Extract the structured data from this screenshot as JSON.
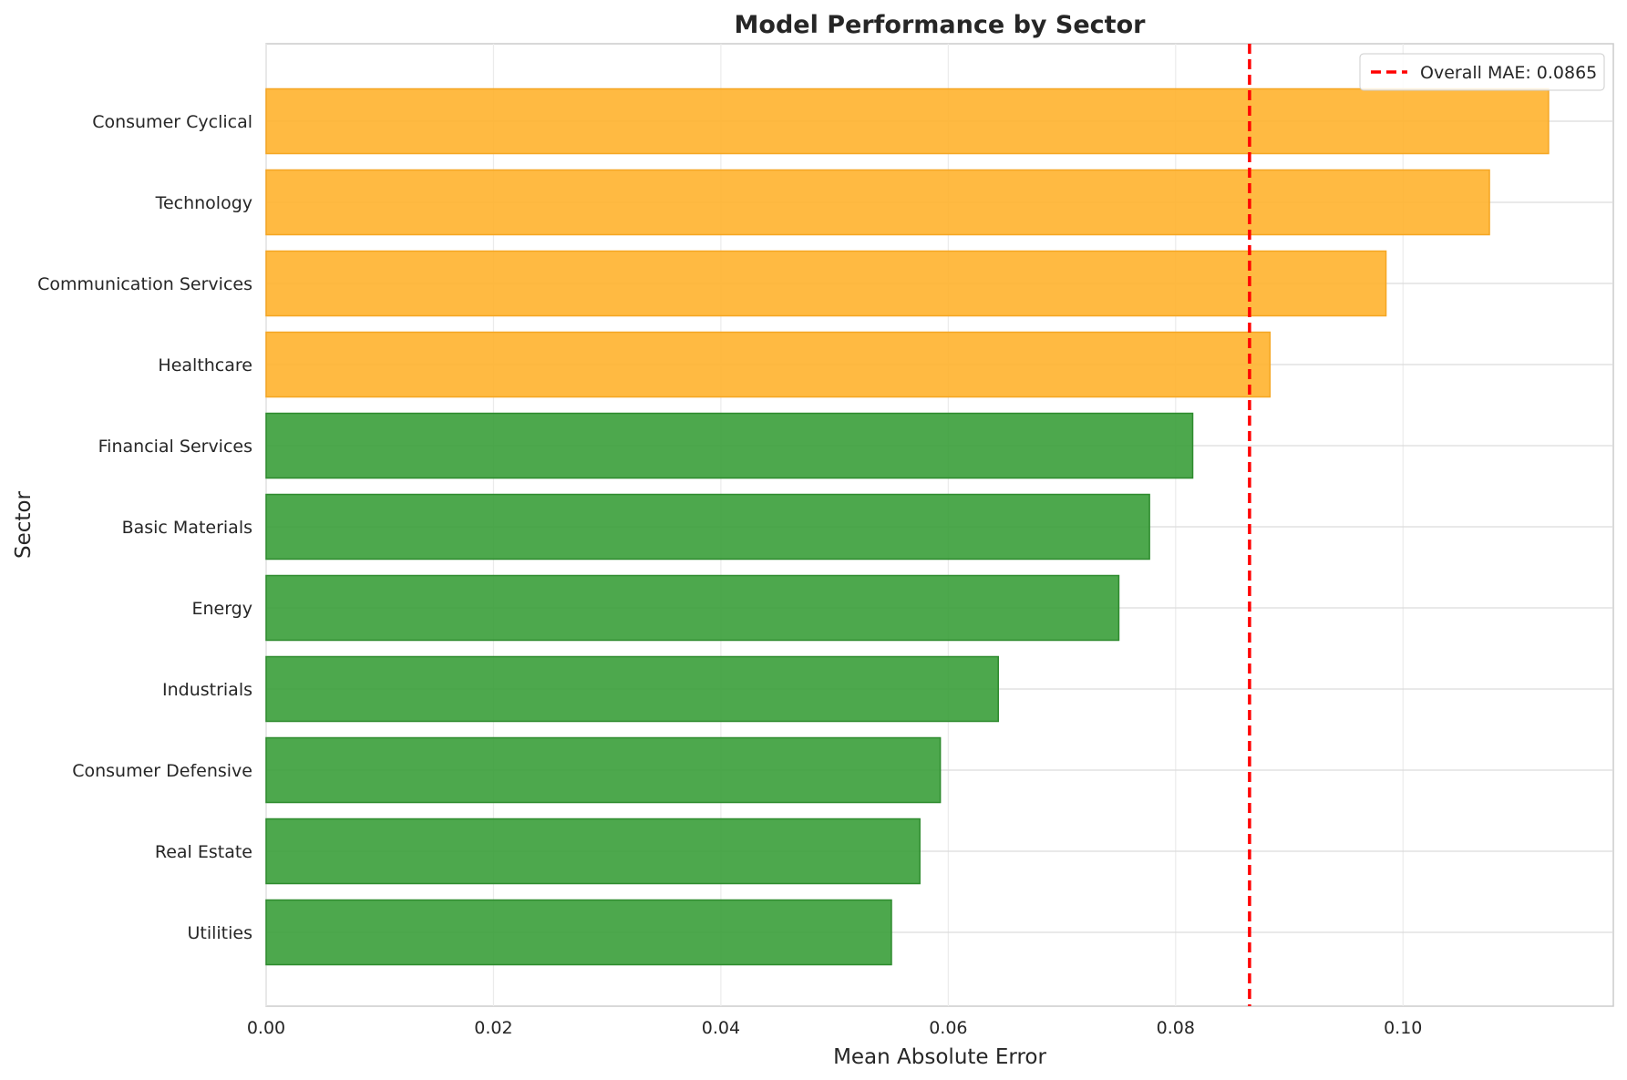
{
  "chart_data": {
    "type": "bar",
    "orientation": "horizontal",
    "title": "Model Performance by Sector",
    "xlabel": "Mean Absolute Error",
    "ylabel": "Sector",
    "xlim": [
      0,
      0.1185
    ],
    "x_ticks": [
      "0.00",
      "0.02",
      "0.04",
      "0.06",
      "0.08",
      "0.10"
    ],
    "x_tick_values": [
      0.0,
      0.02,
      0.04,
      0.06,
      0.08,
      0.1
    ],
    "categories": [
      "Consumer Cyclical",
      "Technology",
      "Communication Services",
      "Healthcare",
      "Financial Services",
      "Basic Materials",
      "Energy",
      "Industrials",
      "Consumer Defensive",
      "Real Estate",
      "Utilities"
    ],
    "values": [
      0.1128,
      0.1076,
      0.0985,
      0.0883,
      0.0815,
      0.0777,
      0.075,
      0.0644,
      0.0593,
      0.0575,
      0.055
    ],
    "bar_colors": [
      "#FFB32E",
      "#FFB32E",
      "#FFB32E",
      "#FFB32E",
      "#3A9E3A",
      "#3A9E3A",
      "#3A9E3A",
      "#3A9E3A",
      "#3A9E3A",
      "#3A9E3A",
      "#3A9E3A"
    ],
    "reference_line": {
      "value": 0.0865,
      "color": "#FF0000",
      "style": "dashed"
    },
    "legend": {
      "entries": [
        {
          "label": "Overall MAE: 0.0865"
        }
      ],
      "placement": "top-right"
    },
    "grid": true
  }
}
